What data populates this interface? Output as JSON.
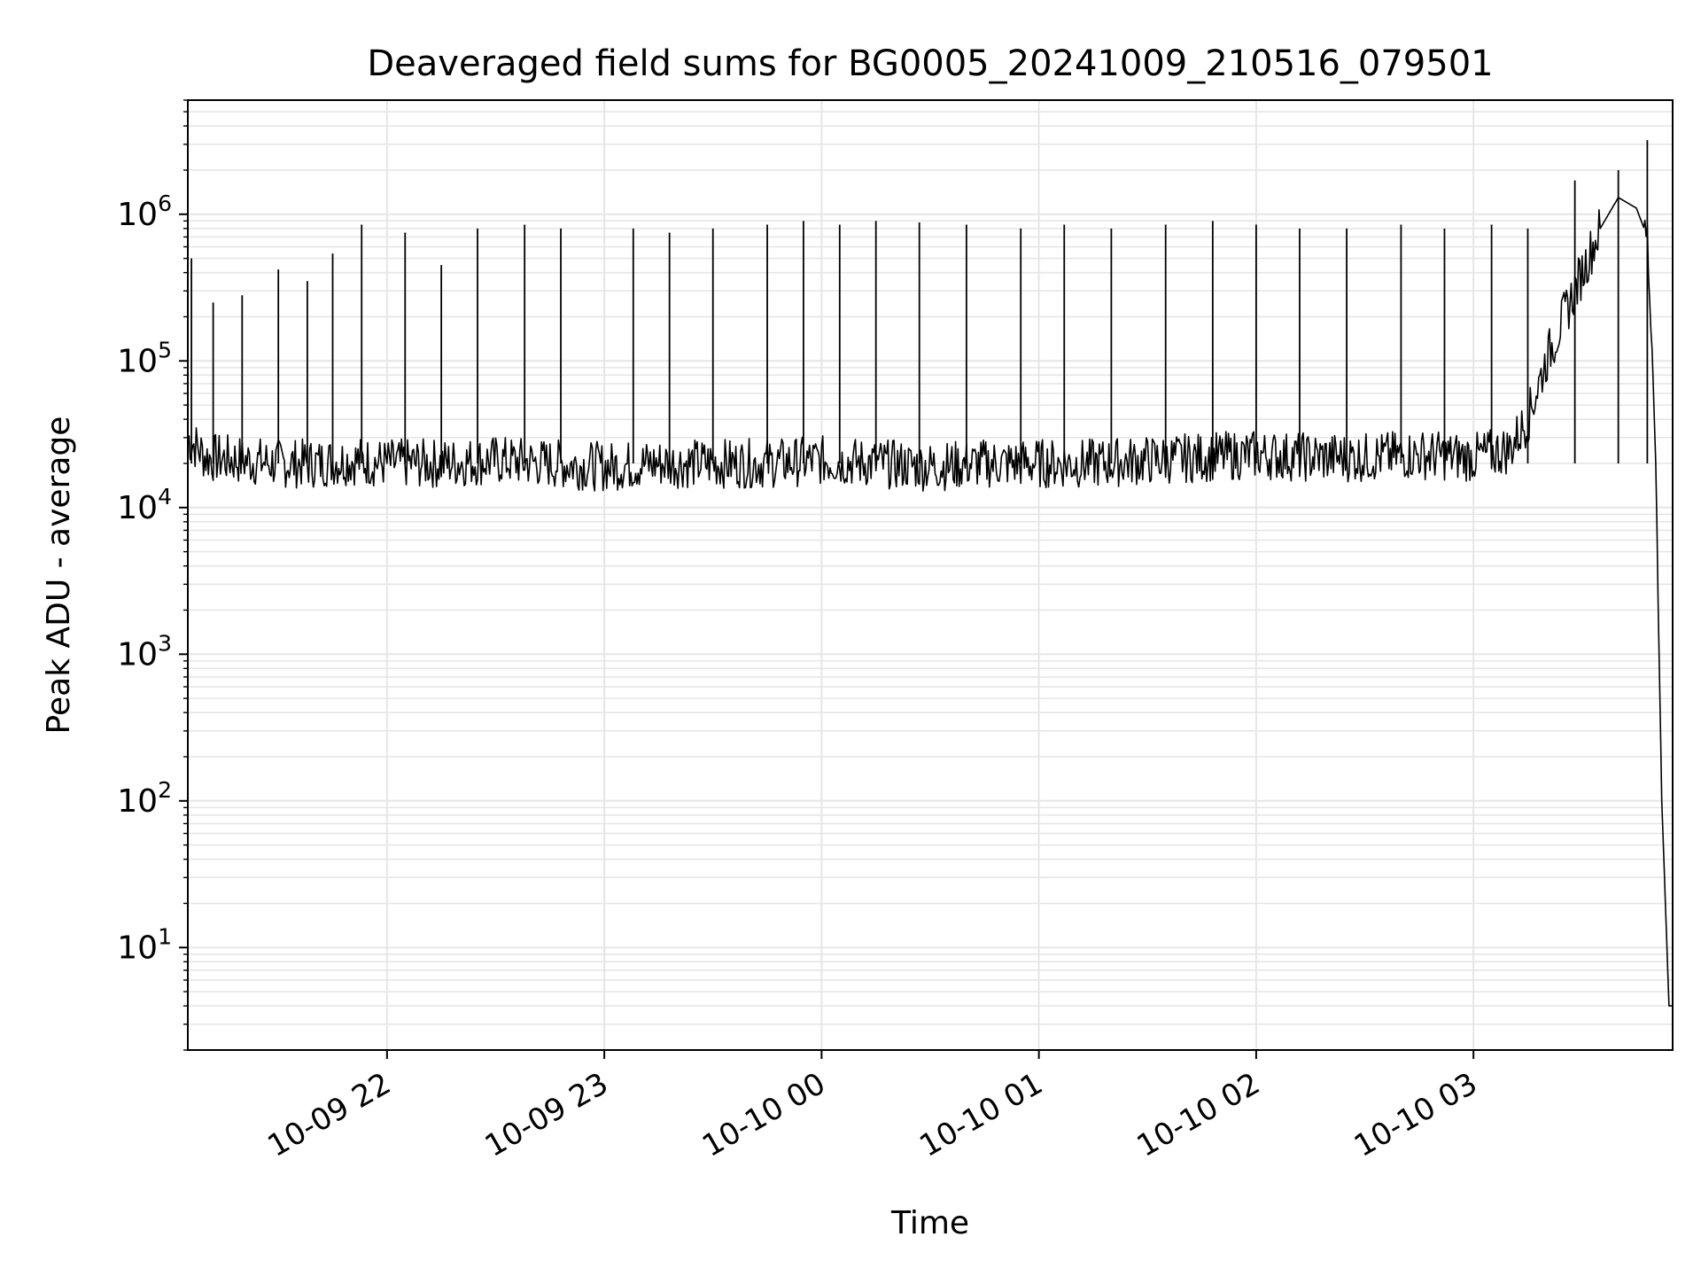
{
  "chart_data": {
    "type": "line",
    "title": "Deaveraged field sums for BG0005_20241009_210516_079501",
    "xlabel": "Time",
    "ylabel": "Peak ADU - average",
    "yscale": "log",
    "ylim": [
      2,
      6000000
    ],
    "xlim": [
      "2024-10-09 21:05",
      "2024-10-10 03:55"
    ],
    "grid": true,
    "legend": "none",
    "line_color": "#000000",
    "grid_color": "#e6e6e6",
    "x_ticks": [
      {
        "time": "2024-10-09 22:00",
        "label": "10-09 22"
      },
      {
        "time": "2024-10-09 23:00",
        "label": "10-09 23"
      },
      {
        "time": "2024-10-10 00:00",
        "label": "10-10 00"
      },
      {
        "time": "2024-10-10 01:00",
        "label": "10-10 01"
      },
      {
        "time": "2024-10-10 02:00",
        "label": "10-10 02"
      },
      {
        "time": "2024-10-10 03:00",
        "label": "10-10 03"
      }
    ],
    "y_ticks": [
      {
        "value": 10,
        "base": "10",
        "exp": "1"
      },
      {
        "value": 100,
        "base": "10",
        "exp": "2"
      },
      {
        "value": 1000,
        "base": "10",
        "exp": "3"
      },
      {
        "value": 10000,
        "base": "10",
        "exp": "4"
      },
      {
        "value": 100000,
        "base": "10",
        "exp": "5"
      },
      {
        "value": 1000000,
        "base": "10",
        "exp": "6"
      }
    ],
    "series": [
      {
        "x": [
          "2024-10-09 21:05",
          "2024-10-09 21:10",
          "2024-10-09 21:20",
          "2024-10-09 21:30",
          "2024-10-09 21:40",
          "2024-10-09 21:50",
          "2024-10-09 22:00",
          "2024-10-09 22:15",
          "2024-10-09 22:30",
          "2024-10-09 22:45",
          "2024-10-09 23:00",
          "2024-10-09 23:15",
          "2024-10-09 23:30",
          "2024-10-09 23:45",
          "2024-10-10 00:00",
          "2024-10-10 00:15",
          "2024-10-10 00:30",
          "2024-10-10 00:45",
          "2024-10-10 01:00",
          "2024-10-10 01:15",
          "2024-10-10 01:30",
          "2024-10-10 01:45",
          "2024-10-10 02:00",
          "2024-10-10 02:15",
          "2024-10-10 02:30",
          "2024-10-10 02:45",
          "2024-10-10 03:00",
          "2024-10-10 03:10",
          "2024-10-10 03:15",
          "2024-10-10 03:20",
          "2024-10-10 03:25",
          "2024-10-10 03:30",
          "2024-10-10 03:35",
          "2024-10-10 03:40",
          "2024-10-10 03:45",
          "2024-10-10 03:48",
          "2024-10-10 03:50",
          "2024-10-10 03:52",
          "2024-10-10 03:54",
          "2024-10-10 03:55"
        ],
        "y": [
          30000,
          22000,
          21000,
          20000,
          20000,
          21000,
          20000,
          20000,
          21000,
          20000,
          19000,
          20000,
          20000,
          20000,
          21000,
          20000,
          19000,
          20000,
          20000,
          20000,
          21000,
          22000,
          23000,
          22000,
          22000,
          23000,
          22000,
          25000,
          40000,
          100000,
          200000,
          400000,
          800000,
          1300000,
          1100000,
          700000,
          50000,
          100,
          4,
          4
        ]
      }
    ],
    "spikes": [
      {
        "x": "2024-10-09 21:06",
        "y": 500000
      },
      {
        "x": "2024-10-09 21:12",
        "y": 250000
      },
      {
        "x": "2024-10-09 21:20",
        "y": 280000
      },
      {
        "x": "2024-10-09 21:30",
        "y": 420000
      },
      {
        "x": "2024-10-09 21:38",
        "y": 350000
      },
      {
        "x": "2024-10-09 21:45",
        "y": 540000
      },
      {
        "x": "2024-10-09 21:53",
        "y": 850000
      },
      {
        "x": "2024-10-09 22:05",
        "y": 750000
      },
      {
        "x": "2024-10-09 22:15",
        "y": 450000
      },
      {
        "x": "2024-10-09 22:25",
        "y": 800000
      },
      {
        "x": "2024-10-09 22:38",
        "y": 850000
      },
      {
        "x": "2024-10-09 22:48",
        "y": 800000
      },
      {
        "x": "2024-10-09 23:08",
        "y": 800000
      },
      {
        "x": "2024-10-09 23:18",
        "y": 750000
      },
      {
        "x": "2024-10-09 23:30",
        "y": 800000
      },
      {
        "x": "2024-10-09 23:45",
        "y": 850000
      },
      {
        "x": "2024-10-09 23:55",
        "y": 900000
      },
      {
        "x": "2024-10-10 00:05",
        "y": 850000
      },
      {
        "x": "2024-10-10 00:15",
        "y": 900000
      },
      {
        "x": "2024-10-10 00:27",
        "y": 880000
      },
      {
        "x": "2024-10-10 00:40",
        "y": 850000
      },
      {
        "x": "2024-10-10 00:55",
        "y": 800000
      },
      {
        "x": "2024-10-10 01:07",
        "y": 850000
      },
      {
        "x": "2024-10-10 01:20",
        "y": 800000
      },
      {
        "x": "2024-10-10 01:35",
        "y": 850000
      },
      {
        "x": "2024-10-10 01:48",
        "y": 900000
      },
      {
        "x": "2024-10-10 02:00",
        "y": 850000
      },
      {
        "x": "2024-10-10 02:12",
        "y": 800000
      },
      {
        "x": "2024-10-10 02:25",
        "y": 800000
      },
      {
        "x": "2024-10-10 02:40",
        "y": 850000
      },
      {
        "x": "2024-10-10 02:52",
        "y": 800000
      },
      {
        "x": "2024-10-10 03:05",
        "y": 850000
      },
      {
        "x": "2024-10-10 03:15",
        "y": 800000
      },
      {
        "x": "2024-10-10 03:28",
        "y": 1700000
      },
      {
        "x": "2024-10-10 03:40",
        "y": 2000000
      },
      {
        "x": "2024-10-10 03:48",
        "y": 3200000
      }
    ]
  }
}
